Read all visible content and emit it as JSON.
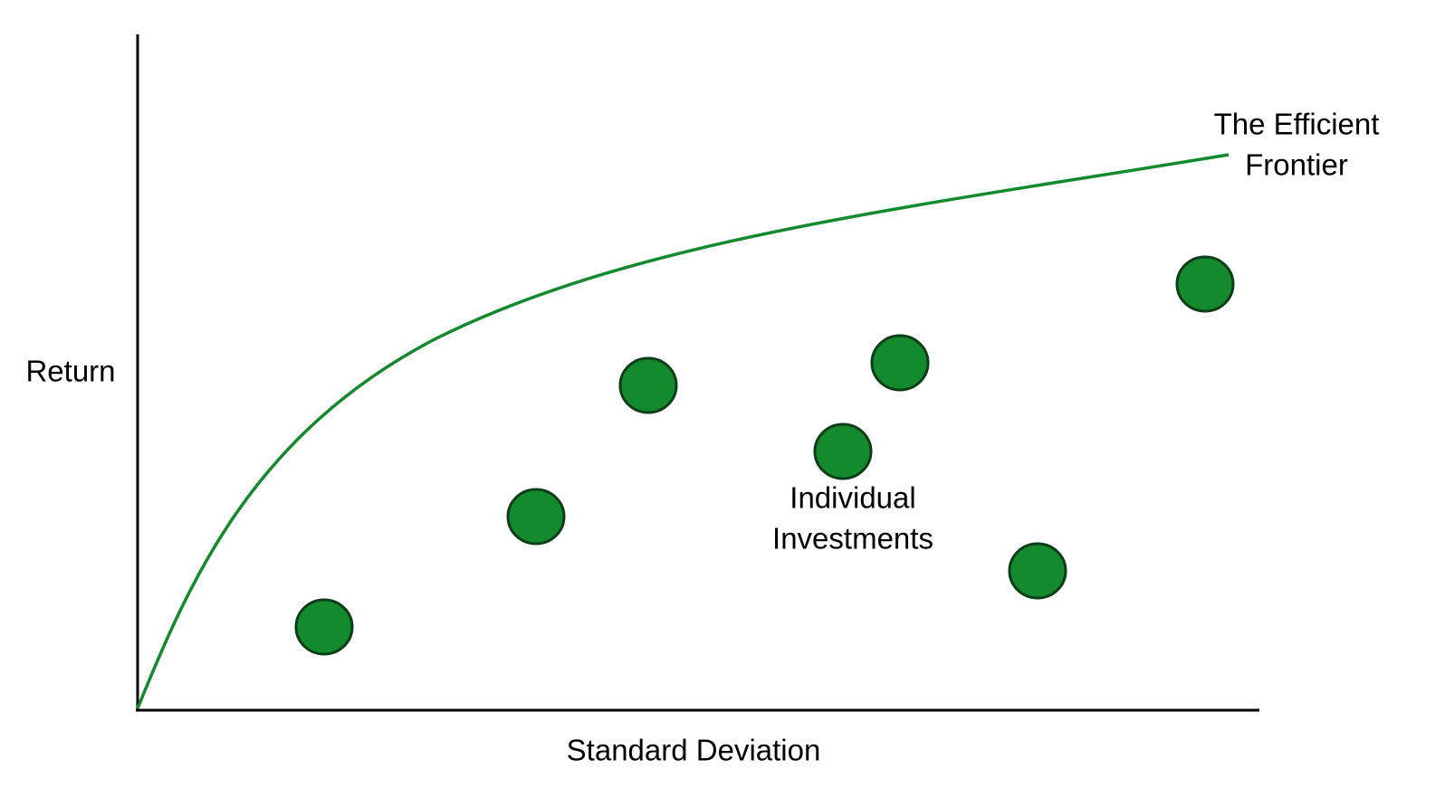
{
  "axes": {
    "y_label": "Return",
    "x_label": "Standard Deviation"
  },
  "annotations": {
    "frontier": [
      "The Efficient",
      "Frontier"
    ],
    "investments": [
      "Individual",
      "Investments"
    ]
  }
}
